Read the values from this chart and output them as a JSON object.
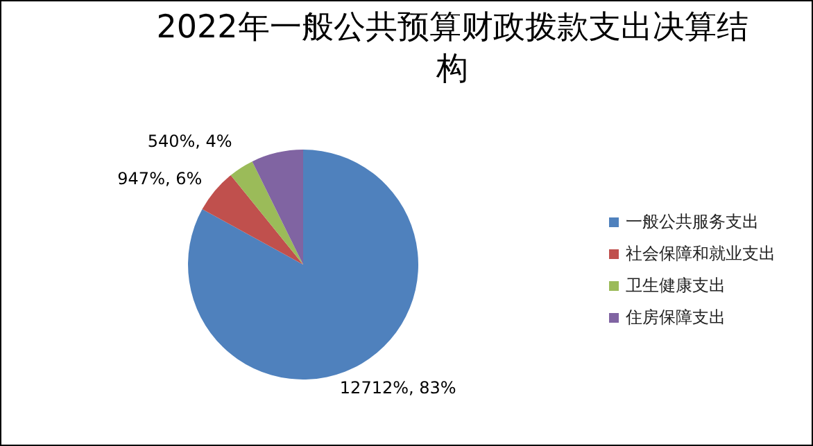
{
  "chart_data": {
    "type": "pie",
    "title": "2022年一般公共预算财政拨款支出决算结构",
    "categories": [
      "一般公共服务支出",
      "社会保障和就业支出",
      "卫生健康支出",
      "住房保障支出"
    ],
    "values": [
      12712,
      947,
      540,
      1117
    ],
    "colors": [
      "#4f81bd",
      "#c0504d",
      "#9bbb59",
      "#8064a2"
    ],
    "value_labels": [
      "12712%, 83%",
      "947%, 6%",
      "540%, 4%",
      null
    ],
    "legend": "right"
  }
}
